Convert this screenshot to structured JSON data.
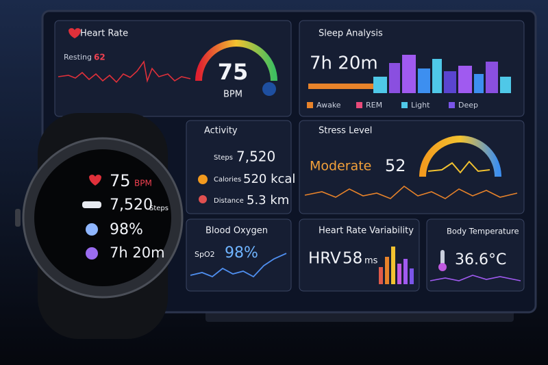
{
  "panels": {
    "heart_rate": {
      "title": "Heart Rate",
      "resting_label": "Resting",
      "resting_value": "62",
      "value": "75",
      "unit": "BPM"
    },
    "sleep": {
      "title": "Sleep Analysis",
      "duration": "7h 20m",
      "legend": [
        "Awake",
        "REM",
        "Light",
        "Deep"
      ]
    },
    "activity": {
      "title": "Activity",
      "rows": [
        {
          "label": "Steps",
          "value": "7,520"
        },
        {
          "label": "Calories",
          "value": "520 kcal"
        },
        {
          "label": "Distance",
          "value": "5.3 km"
        }
      ]
    },
    "stress": {
      "title": "Stress Level",
      "level": "Moderate",
      "value": "52"
    },
    "blood_oxygen": {
      "title": "Blood Oxygen",
      "label": "SpO2",
      "value": "98%"
    },
    "hrv": {
      "title": "Heart Rate Variability",
      "label": "HRV",
      "value": "58",
      "unit": "ms"
    },
    "body_temperature": {
      "title": "Body Temperature",
      "value": "36.6°C"
    }
  },
  "watch": {
    "heart_rate": "75",
    "heart_unit": "BPM",
    "steps": "7,520",
    "steps_label": "Steps",
    "oxygen": "98%",
    "sleep": "7h 20m"
  }
}
